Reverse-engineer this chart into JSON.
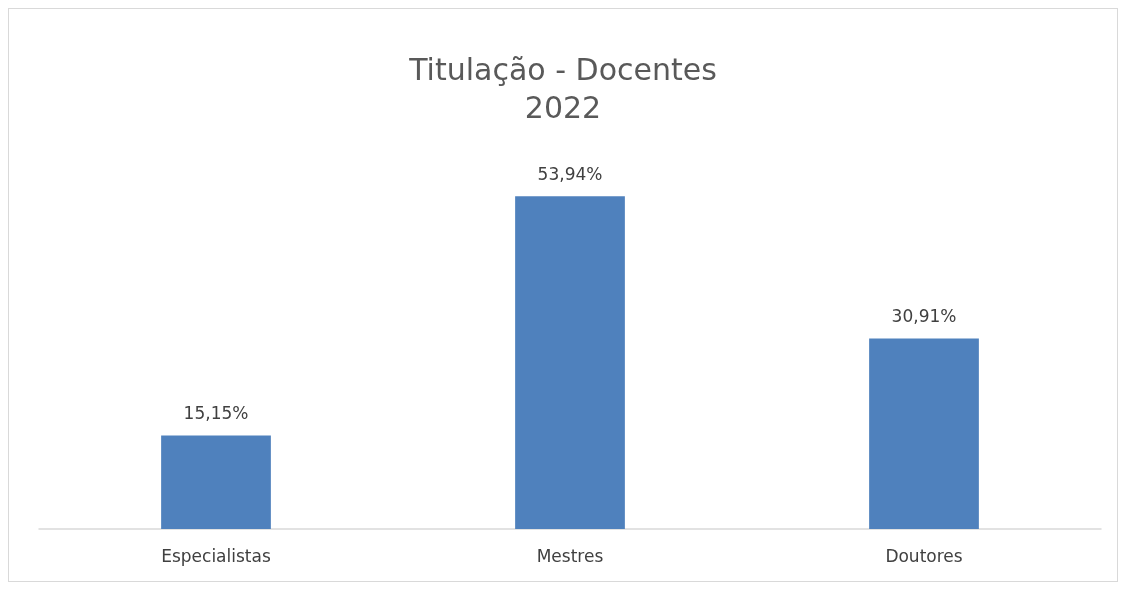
{
  "chart_data": {
    "type": "bar",
    "title": "Titulação - Docentes",
    "subtitle": "2022",
    "categories": [
      "Especialistas",
      "Mestres",
      "Doutores"
    ],
    "values": [
      15.15,
      53.94,
      30.91
    ],
    "value_labels": [
      "15,15%",
      "53,94%",
      "30,91%"
    ],
    "color": "#4f81bd"
  }
}
